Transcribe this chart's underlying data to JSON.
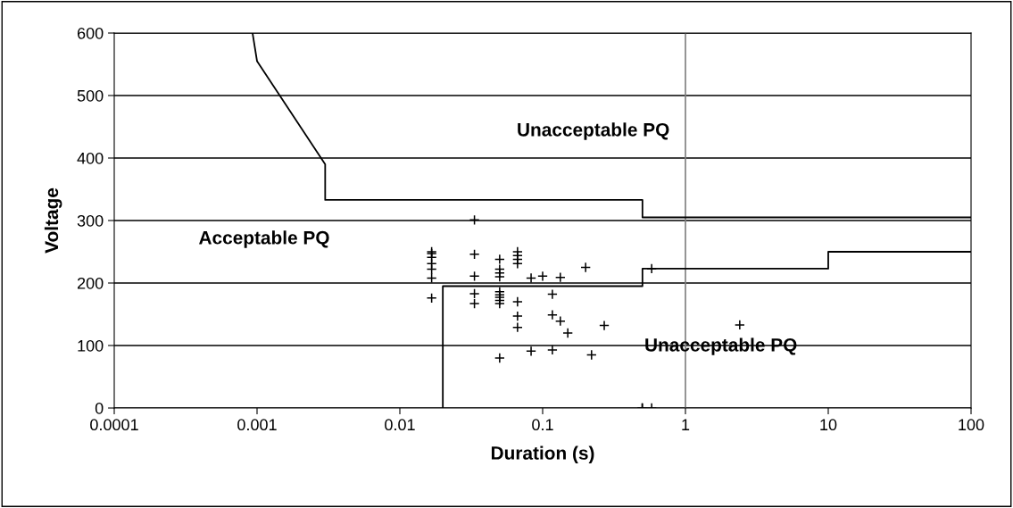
{
  "chart_data": {
    "type": "scatter",
    "xlabel": "Duration (s)",
    "ylabel": "Voltage",
    "log": "x",
    "grid": "y",
    "legend": false,
    "xlim": [
      0.0001,
      100
    ],
    "ylim": [
      0,
      600
    ],
    "xticks": [
      {
        "value": 0.0001,
        "label": "0.0001"
      },
      {
        "value": 0.001,
        "label": "0.001"
      },
      {
        "value": 0.01,
        "label": "0.01"
      },
      {
        "value": 0.1,
        "label": "0.1"
      },
      {
        "value": 1,
        "label": "1"
      },
      {
        "value": 10,
        "label": "10"
      },
      {
        "value": 100,
        "label": "100"
      }
    ],
    "yticks": [
      0,
      100,
      200,
      300,
      400,
      500,
      600
    ],
    "ref_lines": [
      {
        "axis": "x",
        "value": 1,
        "color": "#808080"
      }
    ],
    "series": [
      {
        "type": "line",
        "color": "#000000",
        "marker": "none",
        "x": [
          0.00093,
          0.001,
          0.003,
          0.003,
          0.5,
          0.5,
          100
        ],
        "values": [
          600,
          555,
          390,
          333,
          333,
          305,
          305
        ]
      },
      {
        "type": "line",
        "color": "#000000",
        "marker": "none",
        "x": [
          0.02,
          0.02,
          0.5,
          0.5,
          10,
          10,
          100
        ],
        "values": [
          0,
          195,
          195,
          223,
          223,
          250,
          250
        ]
      },
      {
        "color": "#000000",
        "marker": "cross",
        "x": [
          0.0167,
          0.0167,
          0.0167,
          0.0167,
          0.0167,
          0.0167,
          0.0167,
          0.0333,
          0.0333,
          0.0333,
          0.0333,
          0.0333,
          0.05,
          0.05,
          0.05,
          0.05,
          0.05,
          0.05,
          0.05,
          0.05,
          0.05,
          0.05,
          0.0667,
          0.0667,
          0.0667,
          0.0667,
          0.0667,
          0.0667,
          0.0667,
          0.083,
          0.083,
          0.1,
          0.117,
          0.117,
          0.117,
          0.133,
          0.133,
          0.15,
          0.2,
          0.22,
          0.27,
          0.58,
          2.4,
          0.497,
          0.5,
          0.58
        ],
        "values": [
          250,
          247,
          241,
          231,
          222,
          208,
          176,
          301,
          246,
          211,
          183,
          167,
          238,
          222,
          216,
          210,
          186,
          181,
          177,
          172,
          167,
          80,
          250,
          244,
          238,
          231,
          170,
          147,
          129,
          208,
          91,
          211,
          182,
          149,
          93,
          209,
          139,
          120,
          225,
          85,
          132,
          223,
          133,
          0,
          0,
          0
        ]
      }
    ],
    "annotations": [
      "Unacceptable PQ",
      "Acceptable PQ",
      "Unacceptable PQ"
    ]
  }
}
